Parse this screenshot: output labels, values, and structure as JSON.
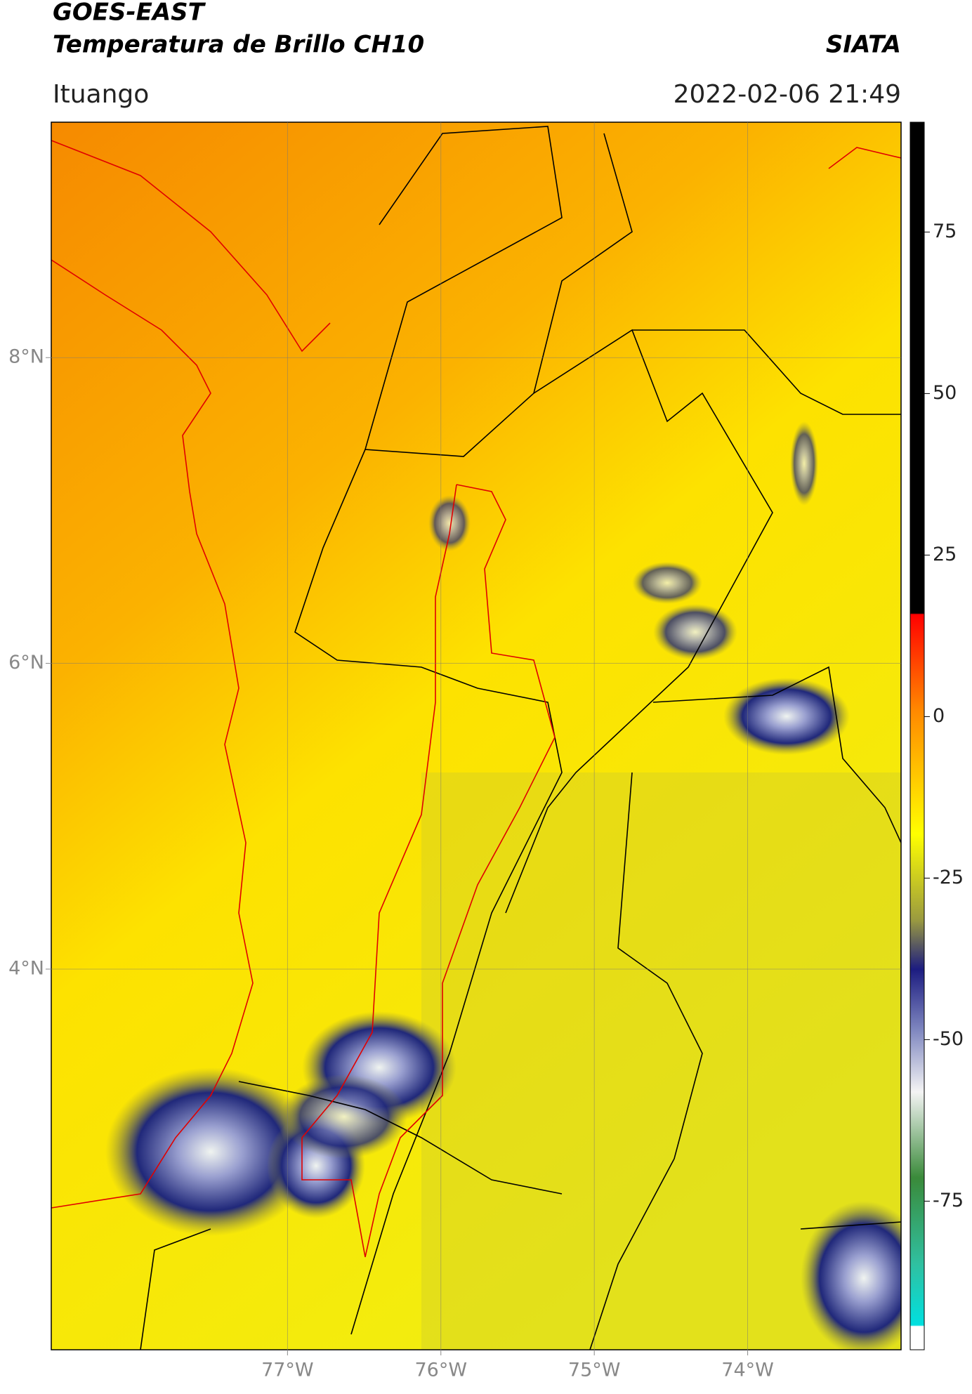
{
  "header": {
    "satellite": "GOES-EAST",
    "product": "Temperatura de Brillo CH10",
    "source": "SIATA",
    "region": "Ituango",
    "datetime": "2022-02-06 21:49"
  },
  "map": {
    "lat_lim": [
      1.51,
      9.54
    ],
    "lon_lim": [
      -78.54,
      -73.0
    ],
    "lat_ticks": [
      {
        "value": 8,
        "label": "8°N"
      },
      {
        "value": 6,
        "label": "6°N"
      },
      {
        "value": 4,
        "label": "4°N"
      }
    ],
    "lon_ticks": [
      {
        "value": -77,
        "label": "77°W"
      },
      {
        "value": -76,
        "label": "76°W"
      },
      {
        "value": -75,
        "label": "75°W"
      },
      {
        "value": -74,
        "label": "74°W"
      }
    ],
    "grid": true
  },
  "colorbar": {
    "lim": [
      -98,
      92
    ],
    "ticks": [
      75,
      50,
      25,
      0,
      -25,
      -50,
      -75
    ]
  }
}
